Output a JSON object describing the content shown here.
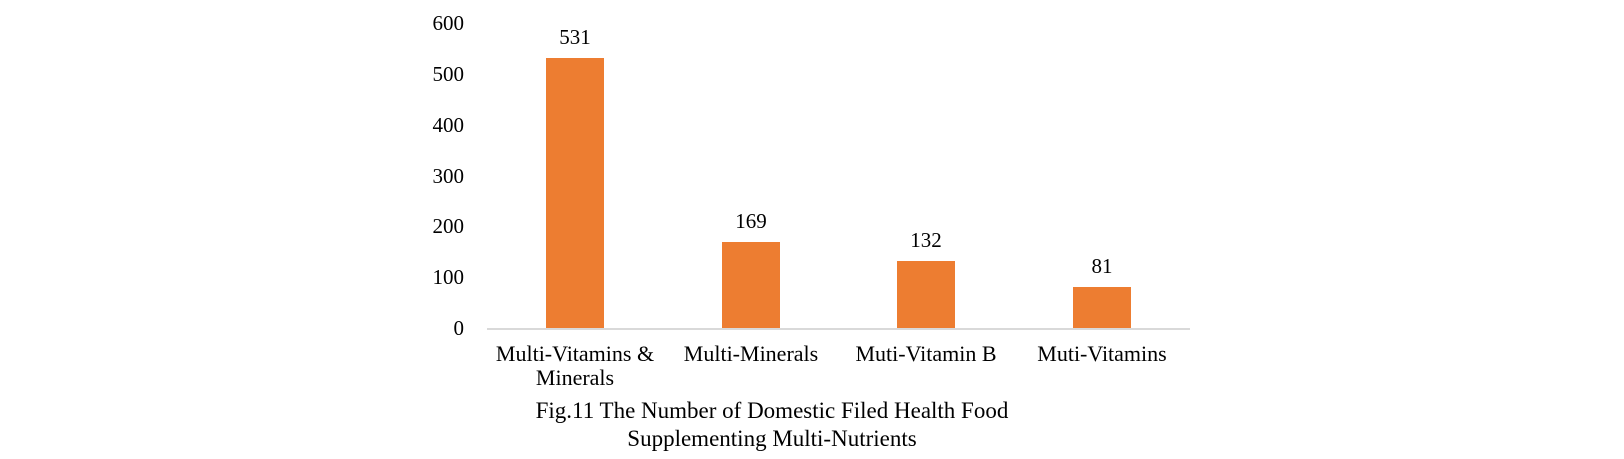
{
  "chart_data": {
    "type": "bar",
    "categories": [
      "Multi-Vitamins & Minerals",
      "Multi-Minerals",
      "Muti-Vitamin B",
      "Muti-Vitamins"
    ],
    "values": [
      531,
      169,
      132,
      81
    ],
    "data_labels": [
      "531",
      "169",
      "132",
      "81"
    ],
    "y_ticks": [
      0,
      100,
      200,
      300,
      400,
      500,
      600
    ],
    "ylim": [
      0,
      600
    ],
    "xlabel": "",
    "ylabel": "",
    "grid": "off",
    "legend": "none",
    "bar_color": "#ED7D31",
    "axis_line_color": "#D9D9D9",
    "title": "Fig.11 The Number of Domestic Filed Health Food Supplementing Multi-Nutrients",
    "caption_line1": "Fig.11 The Number of Domestic Filed Health Food",
    "caption_line2": "Supplementing Multi-Nutrients"
  }
}
